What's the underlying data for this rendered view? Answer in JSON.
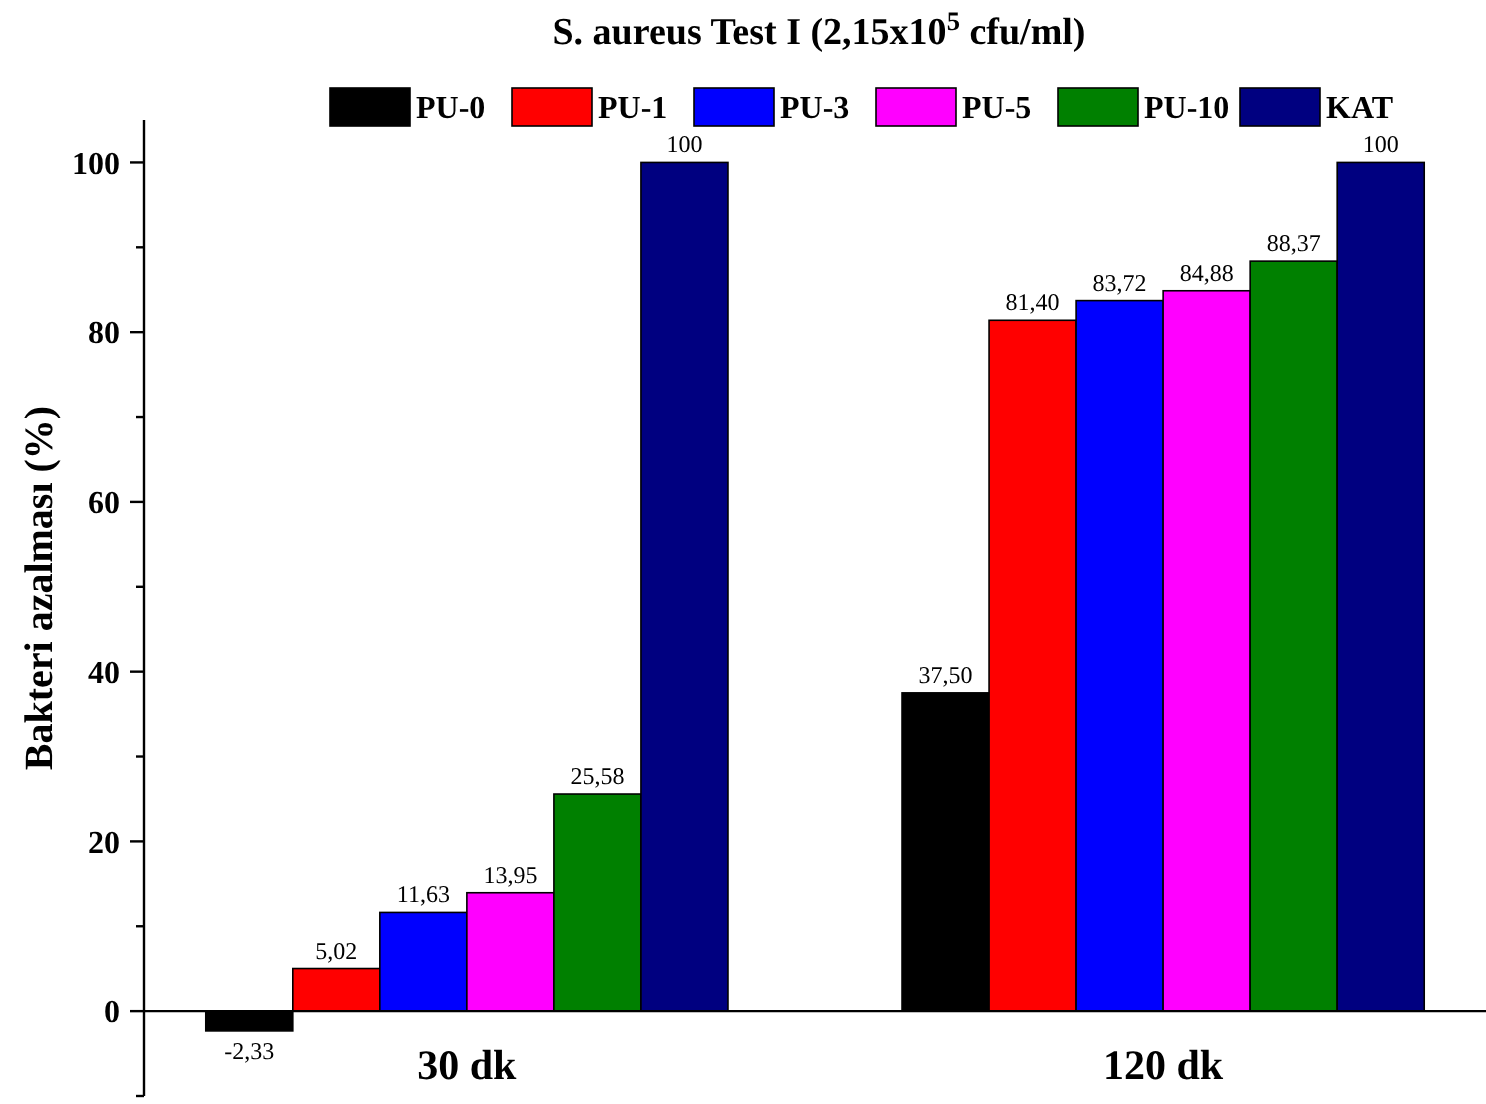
{
  "chart_data": {
    "type": "bar",
    "title": "S. aureus Test I (2,15x10$^{5}$ cfu/ml)",
    "ylabel": "Bakteri azalması (%)",
    "categories": [
      "30 dk",
      "120 dk"
    ],
    "series": [
      {
        "name": "PU-0",
        "color": "#000000",
        "values": [
          -2.33,
          37.5
        ],
        "value_labels": [
          "-2,33",
          "37,50"
        ]
      },
      {
        "name": "PU-1",
        "color": "#ff0000",
        "values": [
          5.02,
          81.4
        ],
        "value_labels": [
          "5,02",
          "81,40"
        ]
      },
      {
        "name": "PU-3",
        "color": "#0000ff",
        "values": [
          11.63,
          83.72
        ],
        "value_labels": [
          "11,63",
          "83,72"
        ]
      },
      {
        "name": "PU-5",
        "color": "#ff00ff",
        "values": [
          13.95,
          84.88
        ],
        "value_labels": [
          "13,95",
          "84,88"
        ]
      },
      {
        "name": "PU-10",
        "color": "#008000",
        "values": [
          25.58,
          88.37
        ],
        "value_labels": [
          "25,58",
          "88,37"
        ]
      },
      {
        "name": "KAT",
        "color": "#000080",
        "values": [
          100,
          100
        ],
        "value_labels": [
          "100",
          "100"
        ]
      }
    ],
    "ylim": [
      -10,
      105
    ],
    "yticks": [
      {
        "value": -10,
        "label": null
      },
      0,
      {
        "value": 10,
        "label": null
      },
      20,
      {
        "value": 30,
        "label": null
      },
      40,
      {
        "value": 50,
        "label": null
      },
      60,
      {
        "value": 70,
        "label": null
      },
      80,
      {
        "value": 90,
        "label": null
      },
      100
    ],
    "grid": false,
    "legend": "top"
  }
}
